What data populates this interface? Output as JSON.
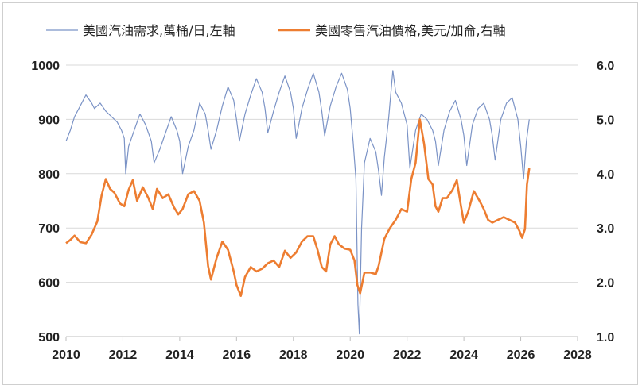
{
  "chart_data": {
    "type": "line",
    "grid": "horizontal",
    "legend_position": "top",
    "x_axis": {
      "range": [
        2010,
        2028
      ],
      "ticks": [
        "2010",
        "2012",
        "2014",
        "2016",
        "2018",
        "2020",
        "2022",
        "2024",
        "2026",
        "2028"
      ]
    },
    "y_left": {
      "range": [
        500,
        1000
      ],
      "ticks": [
        "500",
        "600",
        "700",
        "800",
        "900",
        "1000"
      ]
    },
    "y_right": {
      "range": [
        1.0,
        6.0
      ],
      "ticks": [
        "1.0",
        "2.0",
        "3.0",
        "4.0",
        "5.0",
        "6.0"
      ]
    },
    "series": [
      {
        "name": "美國汽油需求,萬桶/日,左軸",
        "axis": "left",
        "color": "#7b93c6",
        "points": [
          [
            2010.0,
            860
          ],
          [
            2010.15,
            880
          ],
          [
            2010.3,
            905
          ],
          [
            2010.5,
            925
          ],
          [
            2010.7,
            945
          ],
          [
            2010.9,
            930
          ],
          [
            2011.0,
            920
          ],
          [
            2011.2,
            930
          ],
          [
            2011.4,
            915
          ],
          [
            2011.6,
            905
          ],
          [
            2011.8,
            895
          ],
          [
            2011.95,
            880
          ],
          [
            2012.05,
            865
          ],
          [
            2012.1,
            800
          ],
          [
            2012.2,
            850
          ],
          [
            2012.4,
            880
          ],
          [
            2012.6,
            910
          ],
          [
            2012.8,
            890
          ],
          [
            2013.0,
            860
          ],
          [
            2013.1,
            820
          ],
          [
            2013.3,
            845
          ],
          [
            2013.5,
            875
          ],
          [
            2013.7,
            905
          ],
          [
            2013.9,
            880
          ],
          [
            2014.0,
            860
          ],
          [
            2014.1,
            800
          ],
          [
            2014.3,
            850
          ],
          [
            2014.5,
            880
          ],
          [
            2014.7,
            930
          ],
          [
            2014.9,
            910
          ],
          [
            2015.0,
            880
          ],
          [
            2015.1,
            845
          ],
          [
            2015.3,
            880
          ],
          [
            2015.5,
            925
          ],
          [
            2015.7,
            960
          ],
          [
            2015.9,
            935
          ],
          [
            2016.0,
            900
          ],
          [
            2016.1,
            860
          ],
          [
            2016.3,
            910
          ],
          [
            2016.5,
            945
          ],
          [
            2016.7,
            975
          ],
          [
            2016.9,
            950
          ],
          [
            2017.0,
            920
          ],
          [
            2017.1,
            875
          ],
          [
            2017.3,
            915
          ],
          [
            2017.5,
            950
          ],
          [
            2017.7,
            980
          ],
          [
            2017.9,
            950
          ],
          [
            2018.0,
            920
          ],
          [
            2018.1,
            865
          ],
          [
            2018.3,
            920
          ],
          [
            2018.5,
            955
          ],
          [
            2018.7,
            985
          ],
          [
            2018.9,
            950
          ],
          [
            2019.0,
            915
          ],
          [
            2019.1,
            870
          ],
          [
            2019.3,
            925
          ],
          [
            2019.5,
            960
          ],
          [
            2019.7,
            985
          ],
          [
            2019.9,
            955
          ],
          [
            2020.0,
            920
          ],
          [
            2020.1,
            860
          ],
          [
            2020.2,
            790
          ],
          [
            2020.27,
            560
          ],
          [
            2020.32,
            505
          ],
          [
            2020.4,
            700
          ],
          [
            2020.5,
            820
          ],
          [
            2020.7,
            865
          ],
          [
            2020.9,
            840
          ],
          [
            2021.0,
            805
          ],
          [
            2021.1,
            760
          ],
          [
            2021.2,
            830
          ],
          [
            2021.35,
            900
          ],
          [
            2021.5,
            990
          ],
          [
            2021.6,
            950
          ],
          [
            2021.8,
            930
          ],
          [
            2022.0,
            890
          ],
          [
            2022.1,
            810
          ],
          [
            2022.3,
            880
          ],
          [
            2022.5,
            910
          ],
          [
            2022.7,
            900
          ],
          [
            2022.9,
            880
          ],
          [
            2023.0,
            860
          ],
          [
            2023.1,
            815
          ],
          [
            2023.3,
            880
          ],
          [
            2023.5,
            915
          ],
          [
            2023.7,
            935
          ],
          [
            2023.9,
            900
          ],
          [
            2024.0,
            870
          ],
          [
            2024.1,
            815
          ],
          [
            2024.3,
            890
          ],
          [
            2024.5,
            920
          ],
          [
            2024.7,
            930
          ],
          [
            2024.9,
            900
          ],
          [
            2025.0,
            870
          ],
          [
            2025.1,
            825
          ],
          [
            2025.3,
            900
          ],
          [
            2025.5,
            930
          ],
          [
            2025.7,
            940
          ],
          [
            2025.9,
            900
          ],
          [
            2026.0,
            850
          ],
          [
            2026.1,
            790
          ],
          [
            2026.2,
            860
          ],
          [
            2026.3,
            900
          ]
        ]
      },
      {
        "name": "美國零售汽油價格,美元/加侖,右軸",
        "axis": "right",
        "color": "#ed7d31",
        "points": [
          [
            2010.0,
            2.72
          ],
          [
            2010.15,
            2.78
          ],
          [
            2010.3,
            2.86
          ],
          [
            2010.5,
            2.74
          ],
          [
            2010.7,
            2.72
          ],
          [
            2010.9,
            2.88
          ],
          [
            2011.1,
            3.12
          ],
          [
            2011.25,
            3.6
          ],
          [
            2011.4,
            3.9
          ],
          [
            2011.55,
            3.72
          ],
          [
            2011.7,
            3.65
          ],
          [
            2011.9,
            3.45
          ],
          [
            2012.05,
            3.4
          ],
          [
            2012.2,
            3.7
          ],
          [
            2012.35,
            3.88
          ],
          [
            2012.5,
            3.5
          ],
          [
            2012.7,
            3.75
          ],
          [
            2012.9,
            3.55
          ],
          [
            2013.05,
            3.35
          ],
          [
            2013.2,
            3.72
          ],
          [
            2013.4,
            3.55
          ],
          [
            2013.6,
            3.62
          ],
          [
            2013.8,
            3.38
          ],
          [
            2013.95,
            3.25
          ],
          [
            2014.1,
            3.35
          ],
          [
            2014.3,
            3.62
          ],
          [
            2014.5,
            3.68
          ],
          [
            2014.7,
            3.5
          ],
          [
            2014.85,
            3.1
          ],
          [
            2015.0,
            2.3
          ],
          [
            2015.1,
            2.05
          ],
          [
            2015.3,
            2.45
          ],
          [
            2015.5,
            2.75
          ],
          [
            2015.7,
            2.6
          ],
          [
            2015.9,
            2.2
          ],
          [
            2016.0,
            1.95
          ],
          [
            2016.15,
            1.75
          ],
          [
            2016.3,
            2.1
          ],
          [
            2016.5,
            2.28
          ],
          [
            2016.7,
            2.2
          ],
          [
            2016.9,
            2.25
          ],
          [
            2017.1,
            2.35
          ],
          [
            2017.3,
            2.4
          ],
          [
            2017.5,
            2.28
          ],
          [
            2017.7,
            2.58
          ],
          [
            2017.9,
            2.45
          ],
          [
            2018.1,
            2.55
          ],
          [
            2018.3,
            2.75
          ],
          [
            2018.5,
            2.85
          ],
          [
            2018.7,
            2.85
          ],
          [
            2018.85,
            2.6
          ],
          [
            2019.0,
            2.28
          ],
          [
            2019.15,
            2.2
          ],
          [
            2019.3,
            2.7
          ],
          [
            2019.45,
            2.85
          ],
          [
            2019.6,
            2.7
          ],
          [
            2019.8,
            2.62
          ],
          [
            2020.0,
            2.6
          ],
          [
            2020.15,
            2.4
          ],
          [
            2020.25,
            1.95
          ],
          [
            2020.35,
            1.8
          ],
          [
            2020.5,
            2.18
          ],
          [
            2020.7,
            2.18
          ],
          [
            2020.9,
            2.15
          ],
          [
            2021.0,
            2.3
          ],
          [
            2021.2,
            2.8
          ],
          [
            2021.4,
            3.0
          ],
          [
            2021.6,
            3.15
          ],
          [
            2021.8,
            3.35
          ],
          [
            2022.0,
            3.3
          ],
          [
            2022.15,
            3.9
          ],
          [
            2022.3,
            4.2
          ],
          [
            2022.45,
            5.0
          ],
          [
            2022.6,
            4.55
          ],
          [
            2022.75,
            3.9
          ],
          [
            2022.9,
            3.8
          ],
          [
            2023.0,
            3.4
          ],
          [
            2023.1,
            3.3
          ],
          [
            2023.25,
            3.55
          ],
          [
            2023.4,
            3.55
          ],
          [
            2023.6,
            3.7
          ],
          [
            2023.75,
            3.88
          ],
          [
            2023.9,
            3.4
          ],
          [
            2024.0,
            3.1
          ],
          [
            2024.15,
            3.3
          ],
          [
            2024.35,
            3.68
          ],
          [
            2024.55,
            3.5
          ],
          [
            2024.7,
            3.35
          ],
          [
            2024.85,
            3.15
          ],
          [
            2025.0,
            3.1
          ],
          [
            2025.2,
            3.15
          ],
          [
            2025.4,
            3.2
          ],
          [
            2025.6,
            3.15
          ],
          [
            2025.8,
            3.1
          ],
          [
            2025.95,
            2.95
          ],
          [
            2026.05,
            2.82
          ],
          [
            2026.15,
            2.98
          ],
          [
            2026.22,
            3.8
          ],
          [
            2026.3,
            4.1
          ]
        ]
      }
    ]
  }
}
